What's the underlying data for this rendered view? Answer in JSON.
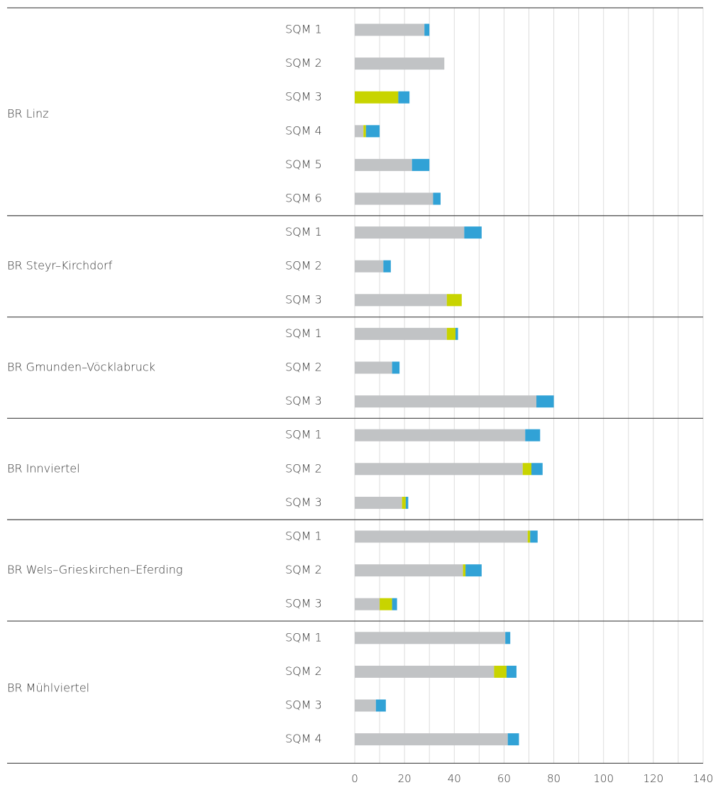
{
  "chart_data": {
    "type": "bar",
    "orientation": "horizontal",
    "stacked": true,
    "xlim": [
      0,
      140
    ],
    "xticks": [
      0,
      20,
      40,
      60,
      80,
      100,
      120,
      140
    ],
    "minor_xticks": [
      10,
      30,
      50,
      70,
      90,
      110,
      130
    ],
    "grid": true,
    "groups": [
      {
        "name": "BR Linz",
        "categories": [
          "SQM 1",
          "SQM 2",
          "SQM 3",
          "SQM 4",
          "SQM 5",
          "SQM 6"
        ],
        "series": [
          {
            "color": "#c1c3c5",
            "values": [
              28,
              36,
              0,
              3.5,
              23,
              31.5
            ]
          },
          {
            "color": "#c8d400",
            "values": [
              0,
              0,
              17.5,
              1,
              0,
              0
            ]
          },
          {
            "color": "#31a2d6",
            "values": [
              2,
              0,
              4.5,
              5.5,
              7,
              3
            ]
          }
        ]
      },
      {
        "name": "BR Steyr–Kirchdorf",
        "categories": [
          "SQM 1",
          "SQM 2",
          "SQM 3"
        ],
        "series": [
          {
            "color": "#c1c3c5",
            "values": [
              44,
              11.5,
              37
            ]
          },
          {
            "color": "#c8d400",
            "values": [
              0,
              0,
              6
            ]
          },
          {
            "color": "#31a2d6",
            "values": [
              7,
              3,
              0
            ]
          }
        ]
      },
      {
        "name": "BR Gmunden–Vöcklabruck",
        "categories": [
          "SQM 1",
          "SQM 2",
          "SQM 3"
        ],
        "series": [
          {
            "color": "#c1c3c5",
            "values": [
              37,
              15,
              73
            ]
          },
          {
            "color": "#c8d400",
            "values": [
              3.5,
              0,
              0
            ]
          },
          {
            "color": "#31a2d6",
            "values": [
              1,
              3,
              7
            ]
          }
        ]
      },
      {
        "name": "BR Innviertel",
        "categories": [
          "SQM 1",
          "SQM 2",
          "SQM 3"
        ],
        "series": [
          {
            "color": "#c1c3c5",
            "values": [
              68.5,
              67.5,
              19
            ]
          },
          {
            "color": "#c8d400",
            "values": [
              0,
              3.5,
              1.5
            ]
          },
          {
            "color": "#31a2d6",
            "values": [
              6,
              4.5,
              1
            ]
          }
        ]
      },
      {
        "name": "BR Wels–Grieskirchen–Eferding",
        "categories": [
          "SQM 1",
          "SQM 2",
          "SQM 3"
        ],
        "series": [
          {
            "color": "#c1c3c5",
            "values": [
              69.5,
              43.5,
              10
            ]
          },
          {
            "color": "#c8d400",
            "values": [
              1,
              1,
              5
            ]
          },
          {
            "color": "#31a2d6",
            "values": [
              3,
              6.5,
              2
            ]
          }
        ]
      },
      {
        "name": "BR Mühlviertel",
        "categories": [
          "SQM 1",
          "SQM 2",
          "SQM 3",
          "SQM 4"
        ],
        "series": [
          {
            "color": "#c1c3c5",
            "values": [
              60.5,
              56,
              8.5,
              61.5
            ]
          },
          {
            "color": "#c8d400",
            "values": [
              0,
              5,
              0,
              0
            ]
          },
          {
            "color": "#31a2d6",
            "values": [
              2,
              4,
              4,
              4.5
            ]
          }
        ]
      }
    ]
  }
}
